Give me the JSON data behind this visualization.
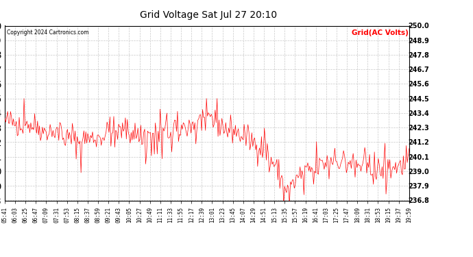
{
  "title": "Grid Voltage Sat Jul 27 20:10",
  "copyright": "Copyright 2024 Cartronics.com",
  "legend_label": "Grid(AC Volts)",
  "legend_color": "#ff0000",
  "line_color": "#ff0000",
  "background_color": "#ffffff",
  "grid_color": "#c8c8c8",
  "ylim": [
    236.8,
    250.0
  ],
  "yticks": [
    236.8,
    237.9,
    239.0,
    240.1,
    241.2,
    242.3,
    243.4,
    244.5,
    245.6,
    246.7,
    247.8,
    248.9,
    250.0
  ],
  "xtick_labels": [
    "05:41",
    "06:03",
    "06:25",
    "06:47",
    "07:09",
    "07:31",
    "07:53",
    "08:15",
    "08:37",
    "08:59",
    "09:21",
    "09:43",
    "10:05",
    "10:27",
    "10:49",
    "11:11",
    "11:33",
    "11:55",
    "12:17",
    "12:39",
    "13:01",
    "13:23",
    "13:45",
    "14:07",
    "14:29",
    "14:51",
    "15:13",
    "15:35",
    "15:57",
    "16:19",
    "16:41",
    "17:03",
    "17:25",
    "17:47",
    "18:09",
    "18:31",
    "18:53",
    "19:15",
    "19:37",
    "19:59"
  ],
  "n_points": 420,
  "seed": 42
}
